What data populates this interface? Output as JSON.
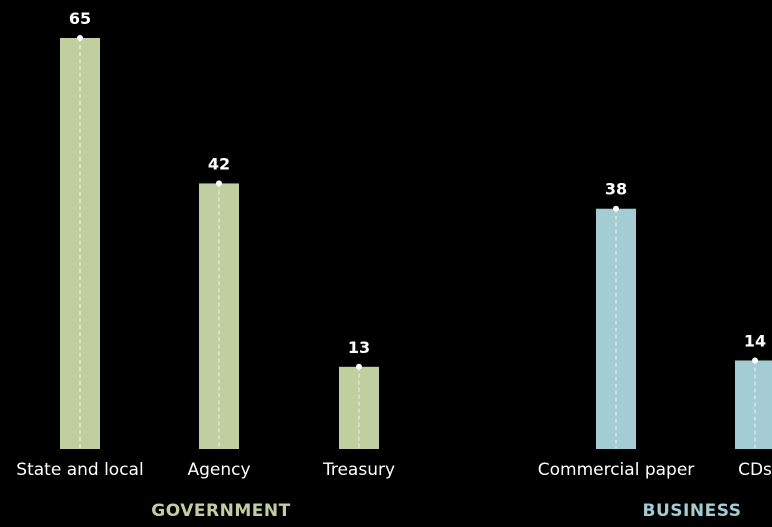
{
  "chart_data": {
    "type": "bar",
    "categories": [
      "State and local",
      "Agency",
      "Treasury",
      "Commercial paper",
      "CDs"
    ],
    "values": [
      65,
      42,
      13,
      38,
      14
    ],
    "groups": [
      {
        "label": "GOVERNMENT",
        "categories": [
          "State and local",
          "Agency",
          "Treasury"
        ],
        "color": "#c1cfa0"
      },
      {
        "label": "BUSINESS",
        "categories": [
          "Commercial paper",
          "CDs"
        ],
        "color": "#a3cdd3"
      }
    ],
    "title": "",
    "xlabel": "",
    "ylabel": "",
    "ylim": [
      0,
      65
    ],
    "grid": false,
    "legend": "none"
  }
}
